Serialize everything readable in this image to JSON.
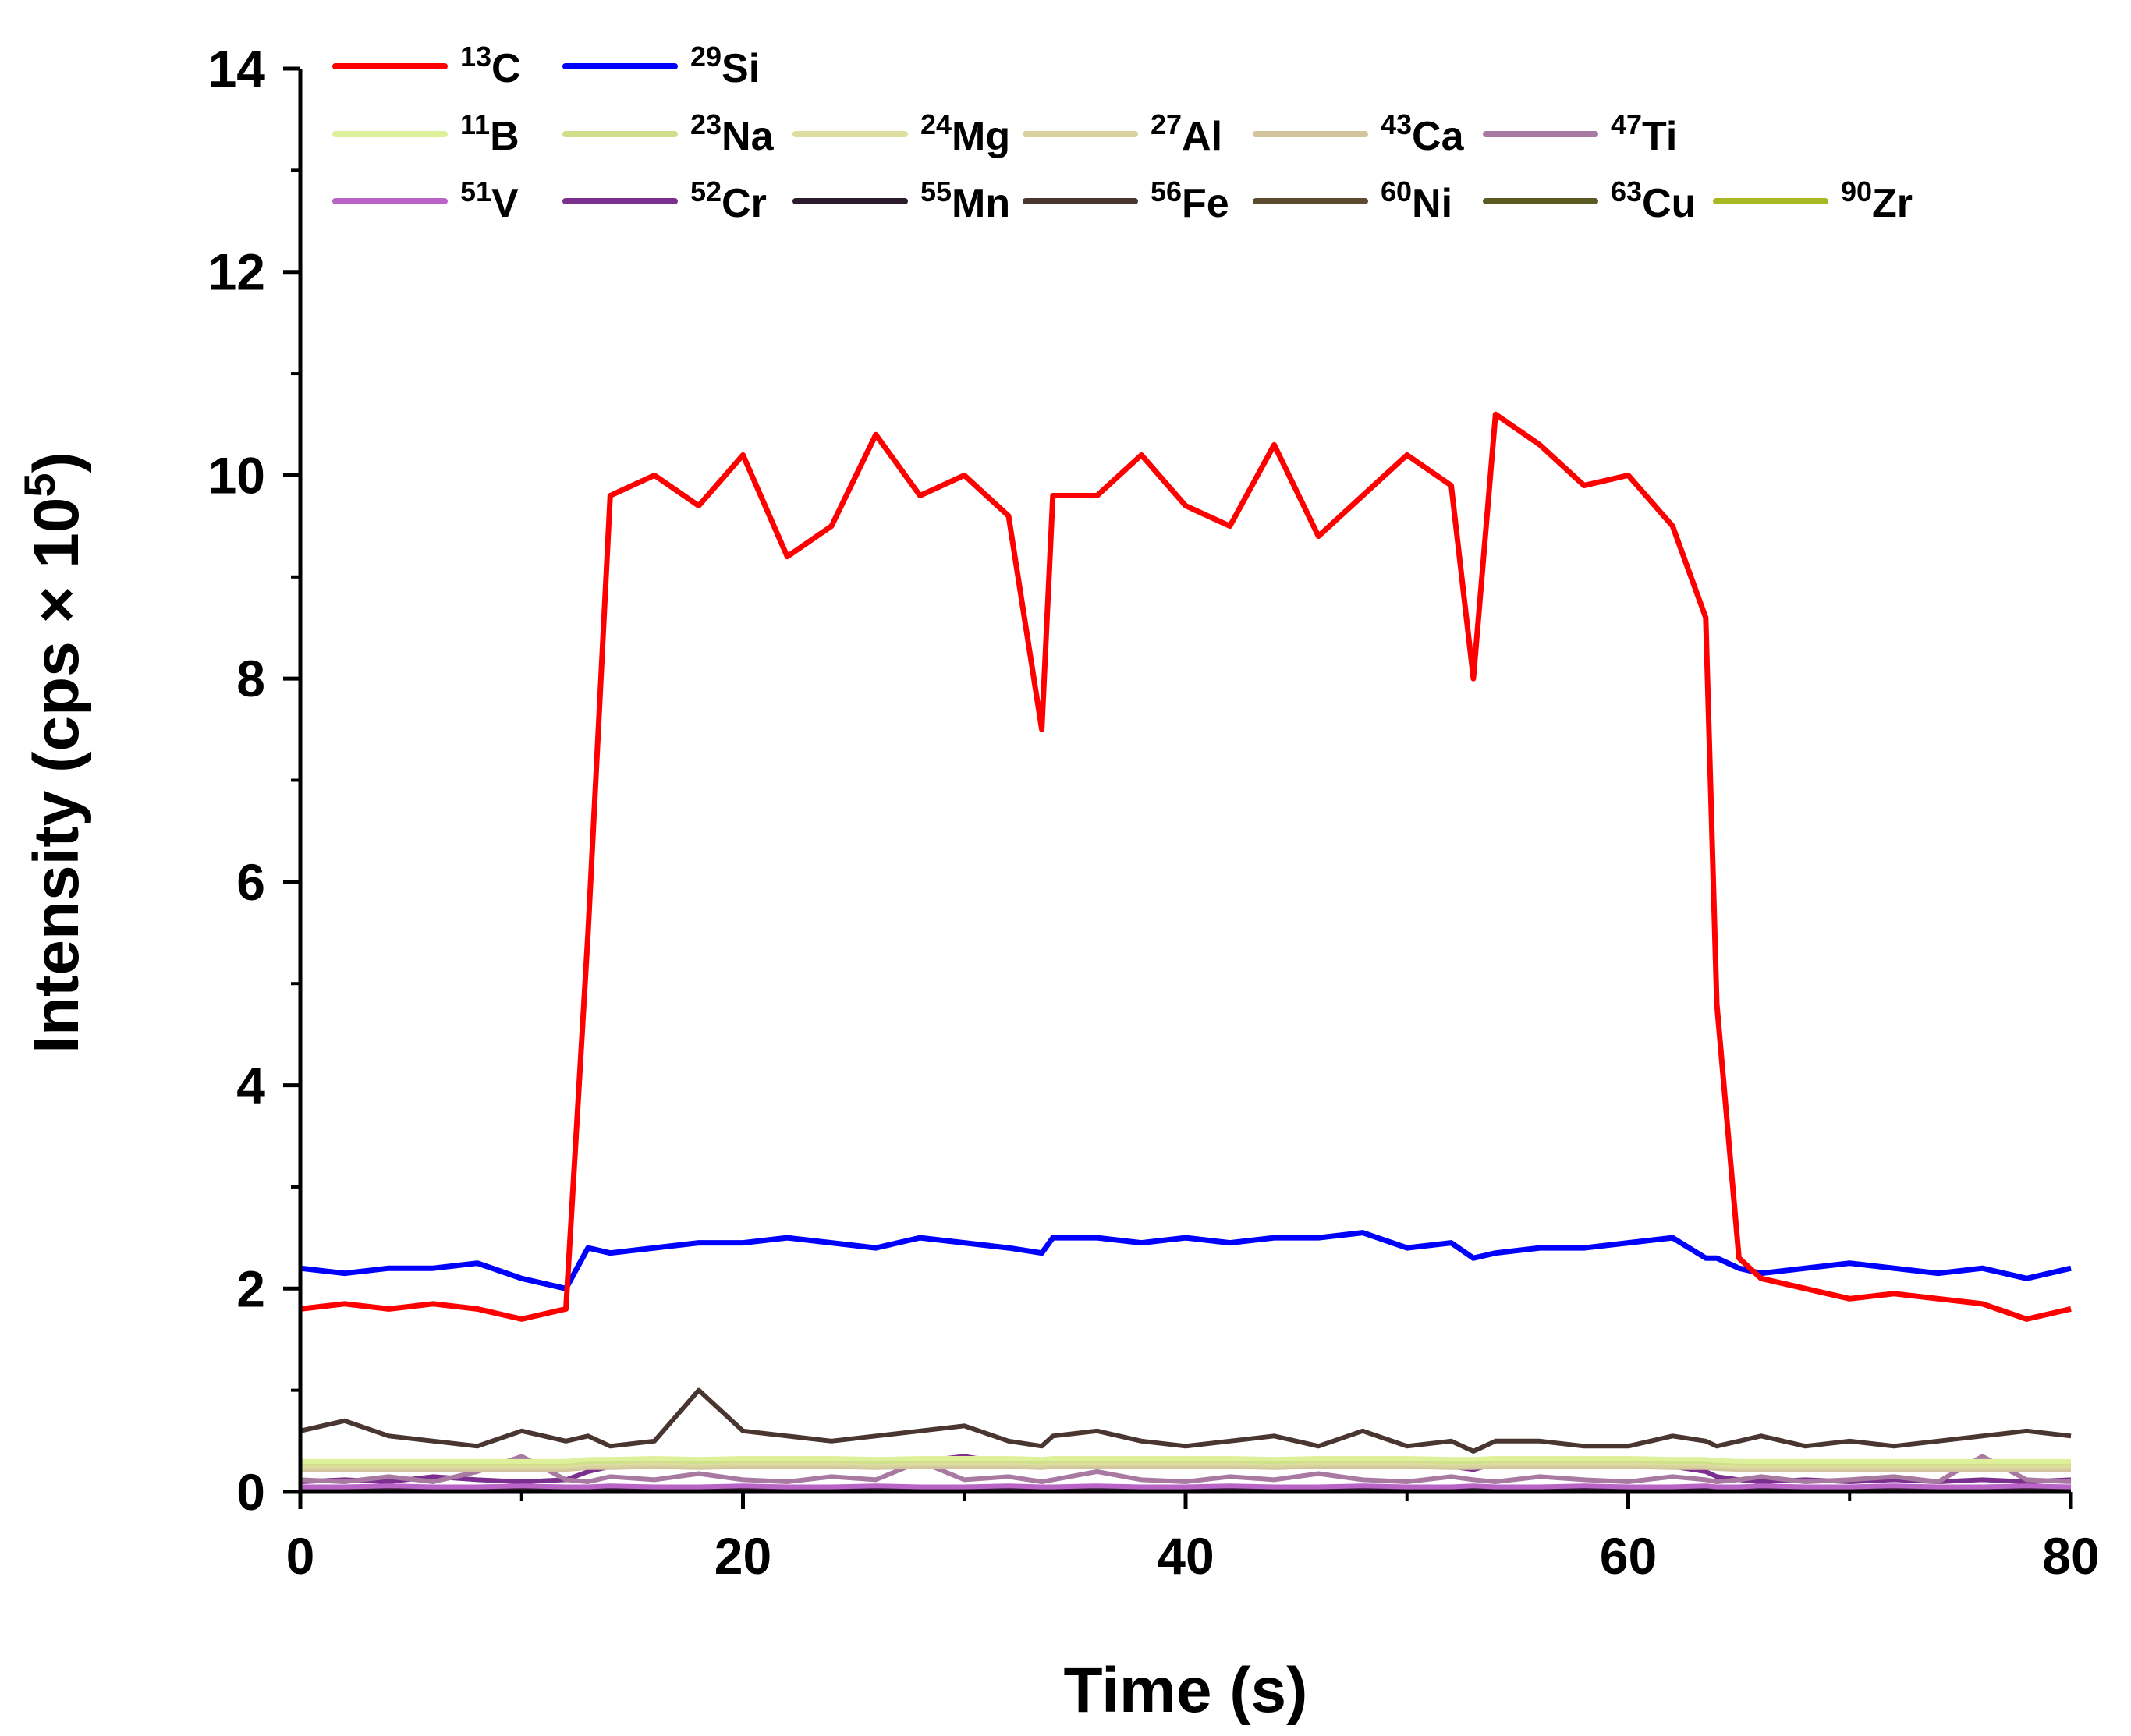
{
  "chart_data": {
    "type": "line",
    "title": "",
    "xlabel": "Time (s)",
    "ylabel": "Intensity (cps × 10^5)",
    "ylabel_parts": {
      "prefix": "Intensity (cps × 10",
      "exp": "5",
      "suffix": ")"
    },
    "xlim": [
      0,
      80
    ],
    "ylim": [
      0,
      14
    ],
    "x_ticks": [
      0,
      20,
      40,
      60,
      80
    ],
    "y_ticks": [
      0,
      2,
      4,
      6,
      8,
      10,
      12,
      14
    ],
    "grid": false,
    "legend_position": "top",
    "x": [
      0,
      2,
      4,
      6,
      8,
      10,
      12,
      13,
      14,
      16,
      18,
      20,
      22,
      24,
      26,
      28,
      30,
      32,
      33.5,
      34,
      36,
      38,
      40,
      42,
      44,
      46,
      48,
      50,
      52,
      53,
      54,
      56,
      58,
      60,
      62,
      63.5,
      64,
      65,
      66,
      68,
      70,
      72,
      74,
      76,
      78,
      80
    ],
    "series": [
      {
        "name": "13C",
        "mass": "13",
        "element": "C",
        "color": "#ff0000",
        "values": [
          1.8,
          1.85,
          1.8,
          1.85,
          1.8,
          1.7,
          1.8,
          5.5,
          9.8,
          10.0,
          9.7,
          10.2,
          9.2,
          9.5,
          10.4,
          9.8,
          10.0,
          9.6,
          7.5,
          9.8,
          9.8,
          10.2,
          9.7,
          9.5,
          10.3,
          9.4,
          9.8,
          10.2,
          9.9,
          8.0,
          10.6,
          10.3,
          9.9,
          10.0,
          9.5,
          8.6,
          4.8,
          2.3,
          2.1,
          2.0,
          1.9,
          1.95,
          1.9,
          1.85,
          1.7,
          1.8
        ]
      },
      {
        "name": "29Si",
        "mass": "29",
        "element": "Si",
        "color": "#0000ff",
        "values": [
          2.2,
          2.15,
          2.2,
          2.2,
          2.25,
          2.1,
          2.0,
          2.4,
          2.35,
          2.4,
          2.45,
          2.45,
          2.5,
          2.45,
          2.4,
          2.5,
          2.45,
          2.4,
          2.35,
          2.5,
          2.5,
          2.45,
          2.5,
          2.45,
          2.5,
          2.5,
          2.55,
          2.4,
          2.45,
          2.3,
          2.35,
          2.4,
          2.4,
          2.45,
          2.5,
          2.3,
          2.3,
          2.2,
          2.15,
          2.2,
          2.25,
          2.2,
          2.15,
          2.2,
          2.1,
          2.2
        ]
      },
      {
        "name": "11B",
        "mass": "11",
        "element": "B",
        "color": "#dff09a",
        "values": [
          0.3,
          0.3,
          0.3,
          0.3,
          0.3,
          0.3,
          0.3,
          0.32,
          0.32,
          0.33,
          0.32,
          0.33,
          0.33,
          0.33,
          0.32,
          0.33,
          0.33,
          0.33,
          0.32,
          0.33,
          0.33,
          0.33,
          0.33,
          0.33,
          0.32,
          0.33,
          0.33,
          0.33,
          0.32,
          0.32,
          0.33,
          0.33,
          0.33,
          0.33,
          0.32,
          0.32,
          0.31,
          0.3,
          0.3,
          0.3,
          0.3,
          0.3,
          0.3,
          0.3,
          0.3,
          0.3
        ]
      },
      {
        "name": "23Na",
        "mass": "23",
        "element": "Na",
        "color": "#cfdf8a",
        "values": [
          0.28,
          0.28,
          0.28,
          0.28,
          0.28,
          0.28,
          0.28,
          0.3,
          0.3,
          0.31,
          0.3,
          0.31,
          0.31,
          0.31,
          0.3,
          0.31,
          0.31,
          0.31,
          0.3,
          0.31,
          0.31,
          0.31,
          0.31,
          0.31,
          0.3,
          0.31,
          0.31,
          0.31,
          0.3,
          0.3,
          0.31,
          0.31,
          0.31,
          0.31,
          0.3,
          0.3,
          0.29,
          0.28,
          0.28,
          0.28,
          0.28,
          0.28,
          0.28,
          0.28,
          0.28,
          0.28
        ]
      },
      {
        "name": "24Mg",
        "mass": "24",
        "element": "Mg",
        "color": "#dede9e",
        "values": [
          0.26,
          0.26,
          0.26,
          0.26,
          0.26,
          0.26,
          0.26,
          0.28,
          0.28,
          0.29,
          0.28,
          0.29,
          0.29,
          0.29,
          0.28,
          0.29,
          0.29,
          0.29,
          0.28,
          0.29,
          0.29,
          0.29,
          0.29,
          0.29,
          0.28,
          0.29,
          0.29,
          0.29,
          0.28,
          0.28,
          0.29,
          0.29,
          0.29,
          0.29,
          0.28,
          0.28,
          0.27,
          0.26,
          0.26,
          0.26,
          0.26,
          0.26,
          0.26,
          0.26,
          0.26,
          0.26
        ]
      },
      {
        "name": "27Al",
        "mass": "27",
        "element": "Al",
        "color": "#d8d29e",
        "values": [
          0.24,
          0.24,
          0.24,
          0.24,
          0.24,
          0.24,
          0.24,
          0.26,
          0.26,
          0.27,
          0.26,
          0.27,
          0.27,
          0.27,
          0.26,
          0.27,
          0.27,
          0.27,
          0.26,
          0.27,
          0.27,
          0.27,
          0.27,
          0.27,
          0.26,
          0.27,
          0.27,
          0.27,
          0.26,
          0.26,
          0.27,
          0.27,
          0.27,
          0.27,
          0.26,
          0.26,
          0.25,
          0.24,
          0.24,
          0.24,
          0.24,
          0.24,
          0.24,
          0.24,
          0.24,
          0.24
        ]
      },
      {
        "name": "43Ca",
        "mass": "43",
        "element": "Ca",
        "color": "#d2c49c",
        "values": [
          0.22,
          0.22,
          0.22,
          0.22,
          0.22,
          0.22,
          0.22,
          0.24,
          0.24,
          0.25,
          0.24,
          0.25,
          0.25,
          0.25,
          0.24,
          0.25,
          0.25,
          0.25,
          0.24,
          0.25,
          0.25,
          0.25,
          0.25,
          0.25,
          0.24,
          0.25,
          0.25,
          0.25,
          0.24,
          0.24,
          0.25,
          0.25,
          0.25,
          0.25,
          0.24,
          0.24,
          0.23,
          0.22,
          0.22,
          0.22,
          0.22,
          0.22,
          0.22,
          0.22,
          0.22,
          0.22
        ]
      },
      {
        "name": "47Ti",
        "mass": "47",
        "element": "Ti",
        "color": "#a87aa2",
        "values": [
          0.12,
          0.1,
          0.15,
          0.1,
          0.2,
          0.35,
          0.12,
          0.1,
          0.15,
          0.12,
          0.18,
          0.12,
          0.1,
          0.15,
          0.12,
          0.3,
          0.12,
          0.15,
          0.1,
          0.12,
          0.2,
          0.12,
          0.1,
          0.15,
          0.12,
          0.18,
          0.12,
          0.1,
          0.15,
          0.12,
          0.1,
          0.15,
          0.12,
          0.1,
          0.15,
          0.12,
          0.1,
          0.12,
          0.15,
          0.1,
          0.12,
          0.15,
          0.1,
          0.35,
          0.12,
          0.1
        ]
      },
      {
        "name": "51V",
        "mass": "51",
        "element": "V",
        "color": "#b964c6",
        "values": [
          0.05,
          0.05,
          0.06,
          0.05,
          0.05,
          0.06,
          0.05,
          0.05,
          0.06,
          0.05,
          0.05,
          0.06,
          0.05,
          0.05,
          0.06,
          0.05,
          0.05,
          0.06,
          0.05,
          0.05,
          0.06,
          0.05,
          0.05,
          0.06,
          0.05,
          0.05,
          0.06,
          0.05,
          0.05,
          0.06,
          0.05,
          0.05,
          0.06,
          0.05,
          0.05,
          0.06,
          0.05,
          0.05,
          0.06,
          0.05,
          0.05,
          0.06,
          0.05,
          0.05,
          0.06,
          0.05
        ]
      },
      {
        "name": "52Cr",
        "mass": "52",
        "element": "Cr",
        "color": "#7b2f8e",
        "values": [
          0.1,
          0.12,
          0.1,
          0.15,
          0.12,
          0.1,
          0.12,
          0.2,
          0.25,
          0.3,
          0.25,
          0.3,
          0.28,
          0.3,
          0.25,
          0.3,
          0.35,
          0.28,
          0.25,
          0.3,
          0.28,
          0.25,
          0.3,
          0.28,
          0.25,
          0.3,
          0.28,
          0.3,
          0.25,
          0.22,
          0.28,
          0.3,
          0.25,
          0.28,
          0.25,
          0.2,
          0.15,
          0.12,
          0.1,
          0.12,
          0.1,
          0.12,
          0.1,
          0.12,
          0.1,
          0.12
        ]
      },
      {
        "name": "55Mn",
        "mass": "55",
        "element": "Mn",
        "color": "#2b1a2c",
        "values": [
          0.03,
          0.03,
          0.03,
          0.03,
          0.03,
          0.03,
          0.03,
          0.03,
          0.03,
          0.03,
          0.03,
          0.03,
          0.03,
          0.03,
          0.03,
          0.03,
          0.03,
          0.03,
          0.03,
          0.03,
          0.03,
          0.03,
          0.03,
          0.03,
          0.03,
          0.03,
          0.03,
          0.03,
          0.03,
          0.03,
          0.03,
          0.03,
          0.03,
          0.03,
          0.03,
          0.03,
          0.03,
          0.03,
          0.03,
          0.03,
          0.03,
          0.03,
          0.03,
          0.03,
          0.03,
          0.03
        ]
      },
      {
        "name": "56Fe",
        "mass": "56",
        "element": "Fe",
        "color": "#4a3630",
        "values": [
          0.6,
          0.7,
          0.55,
          0.5,
          0.45,
          0.6,
          0.5,
          0.55,
          0.45,
          0.5,
          1.0,
          0.6,
          0.55,
          0.5,
          0.55,
          0.6,
          0.65,
          0.5,
          0.45,
          0.55,
          0.6,
          0.5,
          0.45,
          0.5,
          0.55,
          0.45,
          0.6,
          0.45,
          0.5,
          0.4,
          0.5,
          0.5,
          0.45,
          0.45,
          0.55,
          0.5,
          0.45,
          0.5,
          0.55,
          0.45,
          0.5,
          0.45,
          0.5,
          0.55,
          0.6,
          0.55
        ]
      },
      {
        "name": "60Ni",
        "mass": "60",
        "element": "Ni",
        "color": "#5c4a2e",
        "values": [
          0.02,
          0.02,
          0.02,
          0.02,
          0.02,
          0.02,
          0.02,
          0.02,
          0.02,
          0.02,
          0.02,
          0.02,
          0.02,
          0.02,
          0.02,
          0.02,
          0.02,
          0.02,
          0.02,
          0.02,
          0.02,
          0.02,
          0.02,
          0.02,
          0.02,
          0.02,
          0.02,
          0.02,
          0.02,
          0.02,
          0.02,
          0.02,
          0.02,
          0.02,
          0.02,
          0.02,
          0.02,
          0.02,
          0.02,
          0.02,
          0.02,
          0.02,
          0.02,
          0.02,
          0.02,
          0.02
        ]
      },
      {
        "name": "63Cu",
        "mass": "63",
        "element": "Cu",
        "color": "#5a5a22",
        "values": [
          0.02,
          0.02,
          0.02,
          0.02,
          0.02,
          0.02,
          0.02,
          0.02,
          0.02,
          0.02,
          0.02,
          0.02,
          0.02,
          0.02,
          0.02,
          0.02,
          0.02,
          0.02,
          0.02,
          0.02,
          0.02,
          0.02,
          0.02,
          0.02,
          0.02,
          0.02,
          0.02,
          0.02,
          0.02,
          0.02,
          0.02,
          0.02,
          0.02,
          0.02,
          0.02,
          0.02,
          0.02,
          0.02,
          0.02,
          0.02,
          0.02,
          0.02,
          0.02,
          0.02,
          0.02,
          0.02
        ]
      },
      {
        "name": "90Zr",
        "mass": "90",
        "element": "Zr",
        "color": "#a8b822",
        "values": [
          0.01,
          0.01,
          0.01,
          0.01,
          0.01,
          0.01,
          0.01,
          0.01,
          0.01,
          0.01,
          0.01,
          0.01,
          0.01,
          0.01,
          0.01,
          0.01,
          0.01,
          0.01,
          0.01,
          0.01,
          0.01,
          0.01,
          0.01,
          0.01,
          0.01,
          0.01,
          0.01,
          0.01,
          0.01,
          0.01,
          0.01,
          0.01,
          0.01,
          0.01,
          0.01,
          0.01,
          0.01,
          0.01,
          0.01,
          0.01,
          0.01,
          0.01,
          0.01,
          0.01,
          0.01,
          0.01
        ]
      }
    ]
  }
}
